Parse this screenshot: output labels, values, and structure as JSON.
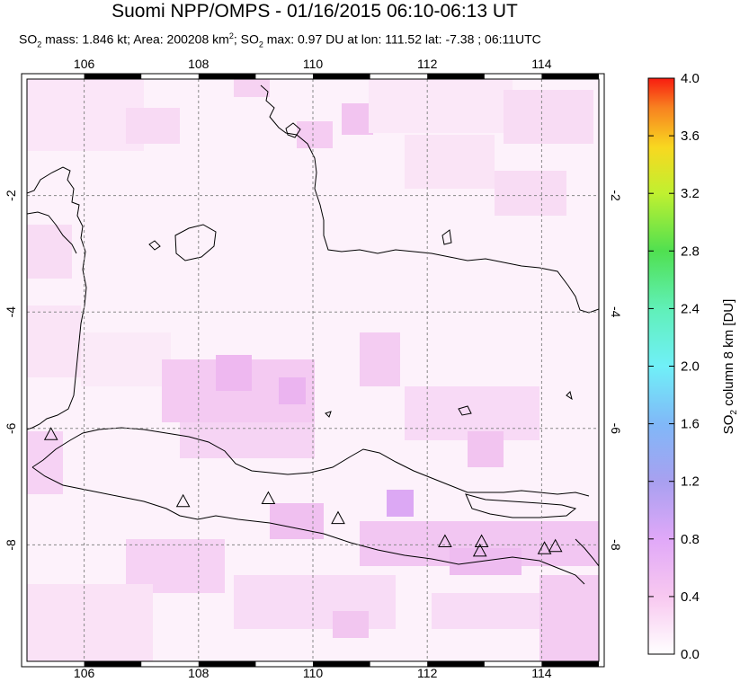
{
  "title": "Suomi NPP/OMPS - 01/16/2015 06:10-06:13 UT",
  "subtitle": {
    "so2_prefix": "SO",
    "sub2": "2",
    "mass_text": " mass: 1.846 kt; Area: 200208 km",
    "sup2": "2",
    "after_area": "; SO",
    "max_text": " max: 0.97 DU at lon: 111.52 lat: -7.38 ; 06:11UTC"
  },
  "map": {
    "lon_range": [
      105,
      115
    ],
    "lat_range": [
      -10,
      0
    ],
    "lon_ticks": [
      "106",
      "108",
      "110",
      "112",
      "114"
    ],
    "lat_ticks": [
      "-2",
      "-4",
      "-6",
      "-8"
    ],
    "volcanoes": [
      {
        "lon": 105.42,
        "lat": -6.1
      },
      {
        "lon": 107.73,
        "lat": -7.25
      },
      {
        "lon": 109.22,
        "lat": -7.2
      },
      {
        "lon": 110.44,
        "lat": -7.54
      },
      {
        "lon": 112.31,
        "lat": -7.94
      },
      {
        "lon": 112.95,
        "lat": -7.94
      },
      {
        "lon": 112.92,
        "lat": -8.1
      },
      {
        "lon": 114.05,
        "lat": -8.06
      },
      {
        "lon": 114.24,
        "lat": -8.02
      }
    ]
  },
  "colorbar": {
    "label_prefix": "SO",
    "label_sub": "2",
    "label_suffix": " column 8 km [DU]",
    "ticks": [
      "0.0",
      "0.4",
      "0.8",
      "1.2",
      "1.6",
      "2.0",
      "2.4",
      "2.8",
      "3.2",
      "3.6",
      "4.0"
    ],
    "colors": [
      "#ffffff",
      "#f8c8f0",
      "#d8a0f8",
      "#a0a0f8",
      "#78c8f8",
      "#70f8f8",
      "#60f8b0",
      "#50e850",
      "#c0f030",
      "#f8d020",
      "#f88020",
      "#f82010"
    ]
  }
}
